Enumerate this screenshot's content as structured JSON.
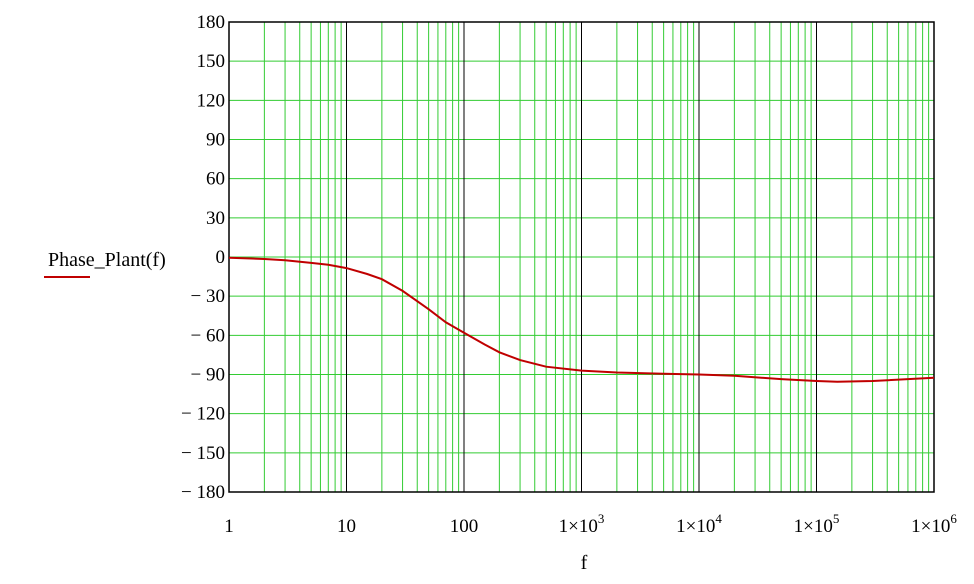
{
  "chart_data": {
    "type": "line",
    "x_scale": "log",
    "xlim": [
      1,
      1000000
    ],
    "ylim": [
      -180,
      180
    ],
    "grid": true,
    "xlabel": "f",
    "ylabel": "Phase_Plant(f)",
    "x_ticks": [
      {
        "mantissa": "",
        "base": "1",
        "exp": ""
      },
      {
        "mantissa": "",
        "base": "10",
        "exp": ""
      },
      {
        "mantissa": "",
        "base": "100",
        "exp": ""
      },
      {
        "mantissa": "1×",
        "base": "10",
        "exp": "3"
      },
      {
        "mantissa": "1×",
        "base": "10",
        "exp": "4"
      },
      {
        "mantissa": "1×",
        "base": "10",
        "exp": "5"
      },
      {
        "mantissa": "1×",
        "base": "10",
        "exp": "6"
      }
    ],
    "y_ticks": [
      180,
      150,
      120,
      90,
      60,
      30,
      0,
      -30,
      -60,
      -90,
      -120,
      -150,
      -180
    ],
    "y_tick_labels": [
      "180",
      "150",
      "120",
      "90",
      "60",
      "30",
      "0",
      "− 30",
      "− 60",
      "− 90",
      "− 120",
      "− 150",
      "− 180"
    ],
    "series": [
      {
        "name": "Phase_Plant(f)",
        "color": "#c00000",
        "x": [
          1,
          2,
          3,
          5,
          7,
          10,
          15,
          20,
          30,
          50,
          70,
          100,
          150,
          200,
          300,
          500,
          1000,
          2000,
          5000,
          10000,
          20000,
          50000,
          100000,
          150000,
          300000,
          1000000
        ],
        "y": [
          -0.5,
          -1.5,
          -2.5,
          -4.5,
          -6,
          -8.5,
          -13,
          -17,
          -26,
          -40,
          -50,
          -58,
          -67,
          -73,
          -79,
          -84,
          -87,
          -88.5,
          -89.5,
          -90,
          -91,
          -93.5,
          -95,
          -95.5,
          -95,
          -92.5
        ]
      }
    ]
  }
}
